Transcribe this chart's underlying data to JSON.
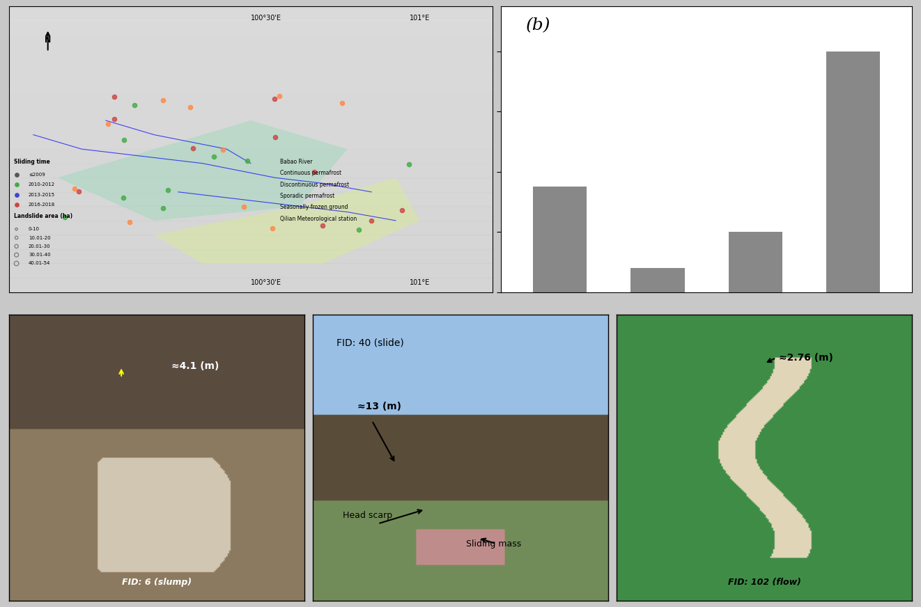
{
  "bar_values": [
    35,
    8,
    20,
    80
  ],
  "bar_color": "#888888",
  "bar_label": "(b)",
  "bar_label_fontsize": 18,
  "bar_xlim": [
    -0.5,
    3.5
  ],
  "bar_ylim": [
    0,
    90
  ],
  "background_color": "#ffffff",
  "outer_bg": "#c8c8c8",
  "panel_label_b": "(b)",
  "photo1_label": "FID: 6 (slump)",
  "photo1_annotation1": "≈4.1 (m)",
  "photo2_label": "FID: 40 (slide)",
  "photo2_annotation1": "≈13 (m)",
  "photo2_annotation2": "Head scarp",
  "photo2_annotation3": "Sliding mass",
  "photo3_label": "FID: 102 (flow)",
  "photo3_annotation1": "≈2.76 (m)"
}
